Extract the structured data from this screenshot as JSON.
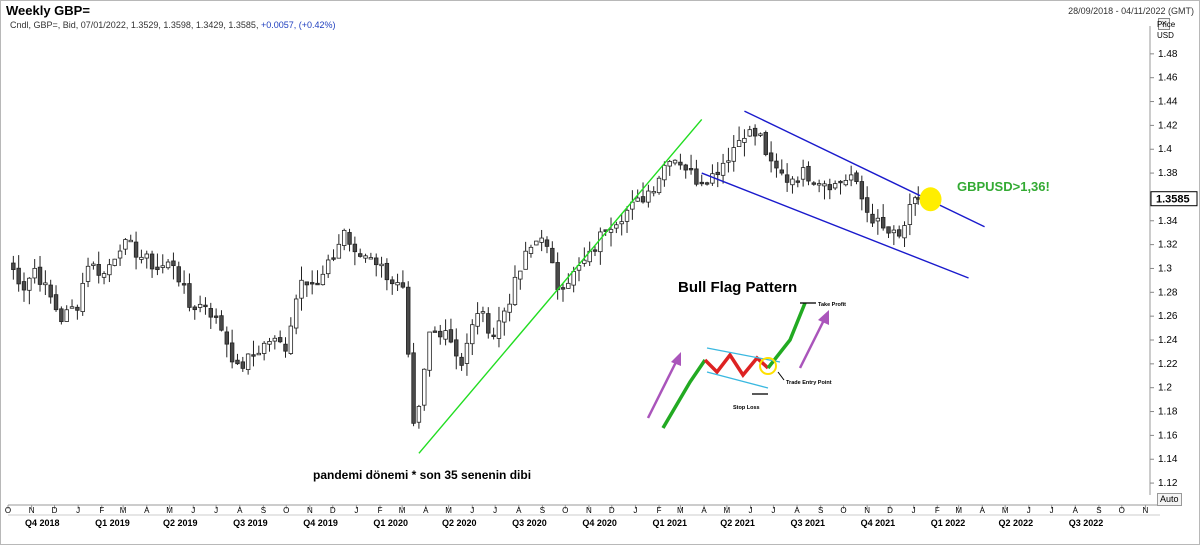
{
  "header": {
    "title": "Weekly GBP=",
    "date_range": "28/09/2018 - 04/11/2022 (GMT)",
    "close_glyph": "×",
    "info_prefix": "Cndl, GBP=, Bid, 07/01/2022, 1.3529, 1.3598, 1.3429, 1.3585, ",
    "info_change": "+0.0057, (+0.42%)"
  },
  "chart_data": {
    "type": "candlestick",
    "title": "Weekly GBP=",
    "ylabel": "Price USD",
    "price_label": "Price",
    "currency_label": "USD",
    "ylim": [
      1.11,
      1.5
    ],
    "y_ticks": [
      "1.12",
      "1.14",
      "1.16",
      "1.18",
      "1.2",
      "1.22",
      "1.24",
      "1.26",
      "1.28",
      "1.3",
      "1.32",
      "1.34",
      "1.36",
      "1.38",
      "1.4",
      "1.42",
      "1.44",
      "1.46",
      "1.48"
    ],
    "x_range": [
      "2018-10-01",
      "2022-11-07"
    ],
    "month_labels": [
      {
        "d": "2018-10-01",
        "l": "O"
      },
      {
        "d": "2018-11-01",
        "l": "N"
      },
      {
        "d": "2018-12-01",
        "l": "D"
      },
      {
        "d": "2019-01-01",
        "l": "J"
      },
      {
        "d": "2019-02-01",
        "l": "F"
      },
      {
        "d": "2019-03-01",
        "l": "M"
      },
      {
        "d": "2019-04-01",
        "l": "A"
      },
      {
        "d": "2019-05-01",
        "l": "M"
      },
      {
        "d": "2019-06-01",
        "l": "J"
      },
      {
        "d": "2019-07-01",
        "l": "J"
      },
      {
        "d": "2019-08-01",
        "l": "A"
      },
      {
        "d": "2019-09-01",
        "l": "S"
      },
      {
        "d": "2019-10-01",
        "l": "O"
      },
      {
        "d": "2019-11-01",
        "l": "N"
      },
      {
        "d": "2019-12-01",
        "l": "D"
      },
      {
        "d": "2020-01-01",
        "l": "J"
      },
      {
        "d": "2020-02-01",
        "l": "F"
      },
      {
        "d": "2020-03-01",
        "l": "M"
      },
      {
        "d": "2020-04-01",
        "l": "A"
      },
      {
        "d": "2020-05-01",
        "l": "M"
      },
      {
        "d": "2020-06-01",
        "l": "J"
      },
      {
        "d": "2020-07-01",
        "l": "J"
      },
      {
        "d": "2020-08-01",
        "l": "A"
      },
      {
        "d": "2020-09-01",
        "l": "S"
      },
      {
        "d": "2020-10-01",
        "l": "O"
      },
      {
        "d": "2020-11-01",
        "l": "N"
      },
      {
        "d": "2020-12-01",
        "l": "D"
      },
      {
        "d": "2021-01-01",
        "l": "J"
      },
      {
        "d": "2021-02-01",
        "l": "F"
      },
      {
        "d": "2021-03-01",
        "l": "M"
      },
      {
        "d": "2021-04-01",
        "l": "A"
      },
      {
        "d": "2021-05-01",
        "l": "M"
      },
      {
        "d": "2021-06-01",
        "l": "J"
      },
      {
        "d": "2021-07-01",
        "l": "J"
      },
      {
        "d": "2021-08-01",
        "l": "A"
      },
      {
        "d": "2021-09-01",
        "l": "S"
      },
      {
        "d": "2021-10-01",
        "l": "O"
      },
      {
        "d": "2021-11-01",
        "l": "N"
      },
      {
        "d": "2021-12-01",
        "l": "D"
      },
      {
        "d": "2022-01-01",
        "l": "J"
      },
      {
        "d": "2022-02-01",
        "l": "F"
      },
      {
        "d": "2022-03-01",
        "l": "M"
      },
      {
        "d": "2022-04-01",
        "l": "A"
      },
      {
        "d": "2022-05-01",
        "l": "M"
      },
      {
        "d": "2022-06-01",
        "l": "J"
      },
      {
        "d": "2022-07-01",
        "l": "J"
      },
      {
        "d": "2022-08-01",
        "l": "A"
      },
      {
        "d": "2022-09-01",
        "l": "S"
      },
      {
        "d": "2022-10-01",
        "l": "O"
      },
      {
        "d": "2022-11-01",
        "l": "N"
      }
    ],
    "quarter_labels": [
      {
        "d": "2018-11-15",
        "l": "Q4 2018"
      },
      {
        "d": "2019-02-15",
        "l": "Q1 2019"
      },
      {
        "d": "2019-05-15",
        "l": "Q2 2019"
      },
      {
        "d": "2019-08-15",
        "l": "Q3 2019"
      },
      {
        "d": "2019-11-15",
        "l": "Q4 2019"
      },
      {
        "d": "2020-02-15",
        "l": "Q1 2020"
      },
      {
        "d": "2020-05-15",
        "l": "Q2 2020"
      },
      {
        "d": "2020-08-15",
        "l": "Q3 2020"
      },
      {
        "d": "2020-11-15",
        "l": "Q4 2020"
      },
      {
        "d": "2021-02-15",
        "l": "Q1 2021"
      },
      {
        "d": "2021-05-15",
        "l": "Q2 2021"
      },
      {
        "d": "2021-08-15",
        "l": "Q3 2021"
      },
      {
        "d": "2021-11-15",
        "l": "Q4 2021"
      },
      {
        "d": "2022-02-15",
        "l": "Q1 2022"
      },
      {
        "d": "2022-05-15",
        "l": "Q2 2022"
      },
      {
        "d": "2022-08-15",
        "l": "Q3 2022"
      }
    ],
    "close_path": [
      [
        "2018-10-01",
        1.305
      ],
      [
        "2018-10-22",
        1.285
      ],
      [
        "2018-11-05",
        1.3
      ],
      [
        "2018-11-26",
        1.275
      ],
      [
        "2018-12-10",
        1.258
      ],
      [
        "2018-12-31",
        1.27
      ],
      [
        "2019-01-14",
        1.305
      ],
      [
        "2019-02-04",
        1.295
      ],
      [
        "2019-02-25",
        1.32
      ],
      [
        "2019-03-11",
        1.318
      ],
      [
        "2019-03-25",
        1.31
      ],
      [
        "2019-04-15",
        1.3
      ],
      [
        "2019-05-06",
        1.305
      ],
      [
        "2019-05-27",
        1.268
      ],
      [
        "2019-06-17",
        1.27
      ],
      [
        "2019-07-08",
        1.25
      ],
      [
        "2019-07-29",
        1.215
      ],
      [
        "2019-08-19",
        1.228
      ],
      [
        "2019-09-09",
        1.24
      ],
      [
        "2019-09-30",
        1.235
      ],
      [
        "2019-10-21",
        1.295
      ],
      [
        "2019-11-11",
        1.285
      ],
      [
        "2019-12-02",
        1.31
      ],
      [
        "2019-12-16",
        1.332
      ],
      [
        "2019-12-30",
        1.31
      ],
      [
        "2020-01-20",
        1.312
      ],
      [
        "2020-02-10",
        1.295
      ],
      [
        "2020-03-02",
        1.28
      ],
      [
        "2020-03-16",
        1.165
      ],
      [
        "2020-03-23",
        1.18
      ],
      [
        "2020-04-06",
        1.245
      ],
      [
        "2020-04-27",
        1.25
      ],
      [
        "2020-05-18",
        1.22
      ],
      [
        "2020-06-08",
        1.265
      ],
      [
        "2020-06-29",
        1.245
      ],
      [
        "2020-07-20",
        1.275
      ],
      [
        "2020-08-10",
        1.31
      ],
      [
        "2020-08-31",
        1.33
      ],
      [
        "2020-09-21",
        1.285
      ],
      [
        "2020-10-12",
        1.295
      ],
      [
        "2020-11-02",
        1.31
      ],
      [
        "2020-11-23",
        1.335
      ],
      [
        "2020-12-14",
        1.345
      ],
      [
        "2021-01-04",
        1.355
      ],
      [
        "2021-01-25",
        1.37
      ],
      [
        "2021-02-15",
        1.395
      ],
      [
        "2021-03-01",
        1.39
      ],
      [
        "2021-03-22",
        1.375
      ],
      [
        "2021-04-12",
        1.378
      ],
      [
        "2021-05-03",
        1.395
      ],
      [
        "2021-05-24",
        1.415
      ],
      [
        "2021-06-14",
        1.41
      ],
      [
        "2021-06-28",
        1.385
      ],
      [
        "2021-07-19",
        1.375
      ],
      [
        "2021-08-09",
        1.38
      ],
      [
        "2021-08-30",
        1.375
      ],
      [
        "2021-09-20",
        1.37
      ],
      [
        "2021-10-11",
        1.378
      ],
      [
        "2021-11-01",
        1.348
      ],
      [
        "2021-11-22",
        1.332
      ],
      [
        "2021-12-13",
        1.325
      ],
      [
        "2021-12-27",
        1.348
      ],
      [
        "2022-01-07",
        1.3585
      ]
    ],
    "annotations": {
      "bottom_note": "pandemi dönemi * son 35 senenin dibi",
      "target_label": "GBPUSD>1,36!",
      "current_price": "1.3585",
      "inset_title": "Bull Flag Pattern",
      "take_profit": "Take Profit",
      "entry_point": "Trade Entry Point",
      "stop_loss": "Stop Loss",
      "uptrend_line": [
        [
          "2020-03-23",
          1.145
        ],
        [
          "2021-03-29",
          1.425
        ]
      ],
      "channel_upper": [
        [
          "2021-05-24",
          1.432
        ],
        [
          "2022-04-04",
          1.335
        ]
      ],
      "channel_lower": [
        [
          "2021-03-29",
          1.38
        ],
        [
          "2022-03-14",
          1.292
        ]
      ],
      "highlight_point": [
        "2022-01-10",
        1.358
      ]
    },
    "colors": {
      "up": "#ffffff",
      "down": "#4a4a4a",
      "trend": "#22dd22",
      "channel": "#1a1acc",
      "highlight": "#ffee00",
      "label": "#33aa33",
      "inset_up": "#22aa22",
      "inset_down": "#dd2222",
      "inset_arrow": "#aa55bb"
    },
    "grid": false
  },
  "controls": {
    "auto_label": "Auto"
  }
}
